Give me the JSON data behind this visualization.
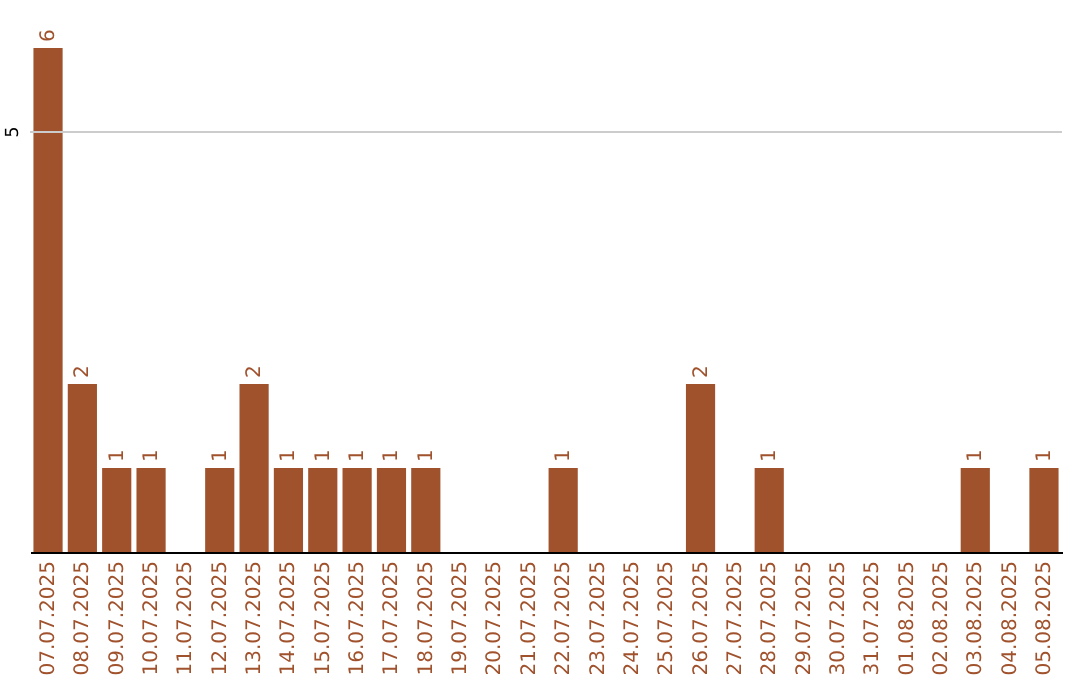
{
  "chart_data": {
    "type": "bar",
    "categories": [
      "07.07.2025",
      "08.07.2025",
      "09.07.2025",
      "10.07.2025",
      "11.07.2025",
      "12.07.2025",
      "13.07.2025",
      "14.07.2025",
      "15.07.2025",
      "16.07.2025",
      "17.07.2025",
      "18.07.2025",
      "19.07.2025",
      "20.07.2025",
      "21.07.2025",
      "22.07.2025",
      "23.07.2025",
      "24.07.2025",
      "25.07.2025",
      "26.07.2025",
      "27.07.2025",
      "28.07.2025",
      "29.07.2025",
      "30.07.2025",
      "31.07.2025",
      "01.08.2025",
      "02.08.2025",
      "03.08.2025",
      "04.08.2025",
      "05.08.2025"
    ],
    "values": [
      6,
      2,
      1,
      1,
      0,
      1,
      2,
      1,
      1,
      1,
      1,
      1,
      0,
      0,
      0,
      1,
      0,
      0,
      0,
      2,
      0,
      1,
      0,
      0,
      0,
      0,
      0,
      1,
      0,
      1
    ],
    "value_labels": [
      "6",
      "2",
      "1",
      "1",
      null,
      "1",
      "2",
      "1",
      "1",
      "1",
      "1",
      "1",
      null,
      null,
      null,
      "1",
      null,
      null,
      null,
      "2",
      null,
      "1",
      null,
      null,
      null,
      null,
      null,
      "1",
      null,
      "1"
    ],
    "color": "#a0522d",
    "ref_lines": [
      {
        "axis": "y",
        "value": 5,
        "label": "5",
        "color": "#cccccc"
      }
    ]
  }
}
